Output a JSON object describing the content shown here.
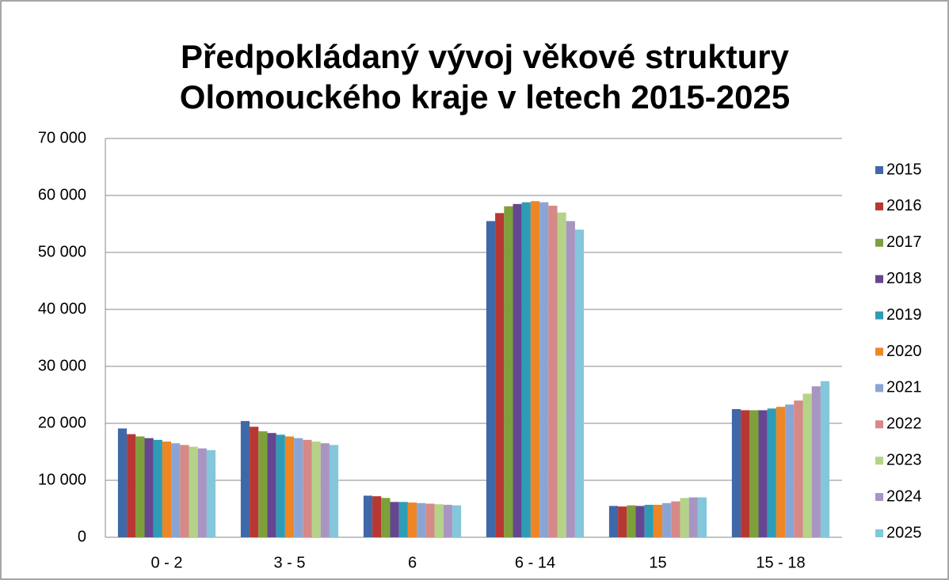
{
  "chart_data": {
    "type": "bar",
    "title": [
      "Předpokládaný vývoj věkové struktury",
      "Olomouckého kraje v letech 2015-2025"
    ],
    "categories": [
      "0 - 2",
      "3 - 5",
      "6",
      "6 - 14",
      "15",
      "15 - 18"
    ],
    "series": [
      {
        "name": "2015",
        "color": "#3f68a8",
        "values": [
          19100,
          20400,
          7300,
          55500,
          5500,
          22500
        ]
      },
      {
        "name": "2016",
        "color": "#b73733",
        "values": [
          18100,
          19400,
          7200,
          56900,
          5400,
          22300
        ]
      },
      {
        "name": "2017",
        "color": "#7ea03a",
        "values": [
          17700,
          18600,
          6900,
          58100,
          5600,
          22300
        ]
      },
      {
        "name": "2018",
        "color": "#654791",
        "values": [
          17400,
          18300,
          6200,
          58500,
          5500,
          22300
        ]
      },
      {
        "name": "2019",
        "color": "#2e9cb6",
        "values": [
          17100,
          18000,
          6200,
          58800,
          5700,
          22600
        ]
      },
      {
        "name": "2020",
        "color": "#ee8626",
        "values": [
          16800,
          17700,
          6100,
          59000,
          5700,
          22900
        ]
      },
      {
        "name": "2021",
        "color": "#8aa5d4",
        "values": [
          16500,
          17400,
          6000,
          58800,
          6000,
          23300
        ]
      },
      {
        "name": "2022",
        "color": "#d68987",
        "values": [
          16200,
          17100,
          5900,
          58200,
          6300,
          24000
        ]
      },
      {
        "name": "2023",
        "color": "#b5d388",
        "values": [
          15900,
          16800,
          5800,
          57000,
          6900,
          25200
        ]
      },
      {
        "name": "2024",
        "color": "#a895c2",
        "values": [
          15600,
          16500,
          5700,
          55500,
          7000,
          26500
        ]
      },
      {
        "name": "2025",
        "color": "#84c6da",
        "values": [
          15300,
          16200,
          5600,
          54000,
          7000,
          27400
        ]
      }
    ],
    "ylim": [
      0,
      70000
    ],
    "yticks": [
      0,
      {
        "value": 10000,
        "label": "10 000"
      },
      {
        "value": 20000,
        "label": "20 000"
      },
      {
        "value": 30000,
        "label": "30 000"
      },
      {
        "value": 40000,
        "label": "40 000"
      },
      {
        "value": 50000,
        "label": "50 000"
      },
      {
        "value": 60000,
        "label": "60 000"
      },
      {
        "value": 70000,
        "label": "70 000"
      }
    ],
    "grid": true,
    "legend": "right"
  }
}
